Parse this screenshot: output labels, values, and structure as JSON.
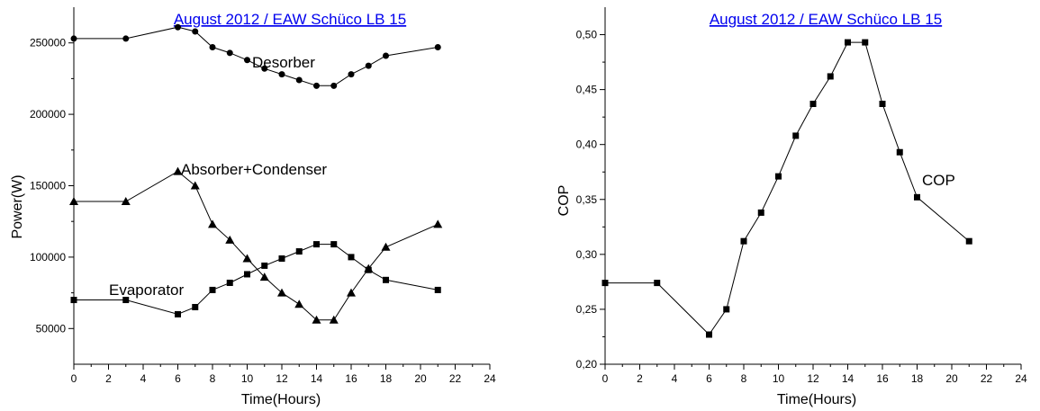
{
  "chart_data": [
    {
      "type": "line",
      "title": "August 2012 / EAW Schüco LB 15",
      "xlabel": "Time(Hours)",
      "ylabel": "Power(W)",
      "xlim": [
        0,
        24
      ],
      "ylim": [
        25000,
        275000
      ],
      "xticks": [
        "0",
        "2",
        "4",
        "6",
        "8",
        "10",
        "12",
        "14",
        "16",
        "18",
        "20",
        "22",
        "24"
      ],
      "yticks": [
        "50000",
        "100000",
        "150000",
        "200000",
        "250000"
      ],
      "grid": false,
      "series": [
        {
          "name": "Desorber",
          "marker": "circle",
          "x": [
            0,
            3,
            6,
            7,
            8,
            9,
            10,
            11,
            12,
            13,
            14,
            15,
            16,
            17,
            18,
            21
          ],
          "y": [
            253000,
            253000,
            261000,
            258000,
            247000,
            243000,
            238000,
            232000,
            228000,
            224000,
            220000,
            220000,
            228000,
            234000,
            241000,
            247000
          ]
        },
        {
          "name": "Absorber+Condenser",
          "marker": "triangle",
          "x": [
            0,
            3,
            6,
            7,
            8,
            9,
            10,
            11,
            12,
            13,
            14,
            15,
            16,
            17,
            18,
            21
          ],
          "y": [
            139000,
            139000,
            160000,
            150000,
            123000,
            112000,
            99000,
            86000,
            75000,
            67000,
            56000,
            56000,
            75000,
            92000,
            107000,
            123000
          ]
        },
        {
          "name": "Evaporator",
          "marker": "square",
          "x": [
            0,
            3,
            6,
            7,
            8,
            9,
            10,
            11,
            12,
            13,
            14,
            15,
            16,
            17,
            18,
            21
          ],
          "y": [
            70000,
            70000,
            60000,
            65000,
            77000,
            82000,
            88000,
            94000,
            99000,
            104000,
            109000,
            109000,
            100000,
            91000,
            84000,
            77000
          ]
        }
      ]
    },
    {
      "type": "line",
      "title": "August 2012 / EAW Schüco LB 15",
      "xlabel": "Time(Hours)",
      "ylabel": "COP",
      "xlim": [
        0,
        24
      ],
      "ylim": [
        0.2,
        0.525
      ],
      "xticks": [
        "0",
        "2",
        "4",
        "6",
        "8",
        "10",
        "12",
        "14",
        "16",
        "18",
        "20",
        "22",
        "24"
      ],
      "yticks": [
        "0,20",
        "0,25",
        "0,30",
        "0,35",
        "0,40",
        "0,45",
        "0,50"
      ],
      "grid": false,
      "series": [
        {
          "name": "COP",
          "marker": "square",
          "x": [
            0,
            3,
            6,
            7,
            8,
            9,
            10,
            11,
            12,
            13,
            14,
            15,
            16,
            17,
            18,
            21
          ],
          "y": [
            0.274,
            0.274,
            0.227,
            0.25,
            0.312,
            0.338,
            0.371,
            0.408,
            0.437,
            0.462,
            0.493,
            0.493,
            0.437,
            0.393,
            0.352,
            0.312
          ]
        }
      ]
    }
  ]
}
